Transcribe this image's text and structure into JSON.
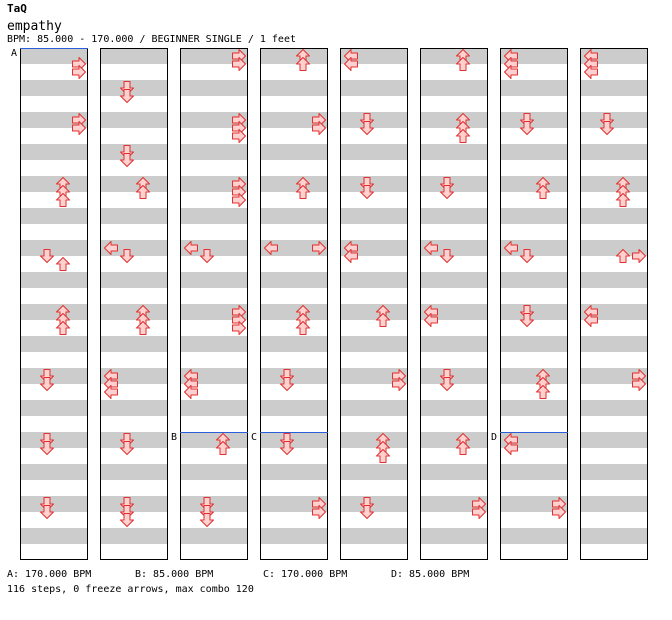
{
  "header": {
    "artist": "TaQ",
    "title": "empathy",
    "info": "BPM: 85.000 - 170.000 / BEGINNER SINGLE / 1 feet"
  },
  "colors": {
    "background": "#ffffff",
    "stripe": "#cccccc",
    "border": "#000000",
    "bpm_line": "#2b5fd9",
    "arrow_fill": "#ffd0d0",
    "arrow_stroke": "#e03030"
  },
  "chart": {
    "columns": 8,
    "measures_per_column": 8,
    "lanes": [
      "left",
      "down",
      "up",
      "right"
    ],
    "markers": [
      {
        "label": "A",
        "col": 0,
        "measure": 0
      },
      {
        "label": "B",
        "col": 2,
        "measure": 6
      },
      {
        "label": "C",
        "col": 3,
        "measure": 6
      },
      {
        "label": "D",
        "col": 6,
        "measure": 6
      }
    ],
    "notes": [
      [
        [
          [
            3,
            1
          ],
          [
            3,
            2
          ]
        ],
        [
          [
            1,
            4
          ],
          [
            1,
            5
          ]
        ],
        [
          [
            3,
            0
          ],
          [
            3,
            1
          ]
        ],
        [
          [
            2,
            0
          ],
          [
            2,
            1
          ]
        ],
        [
          [
            0,
            0
          ],
          [
            0,
            1
          ]
        ],
        [
          [
            2,
            0
          ],
          [
            2,
            1
          ]
        ],
        [
          [
            0,
            0
          ],
          [
            0,
            1
          ],
          [
            0,
            2
          ]
        ],
        [
          [
            0,
            0
          ],
          [
            0,
            1
          ],
          [
            0,
            2
          ]
        ]
      ],
      [
        [
          [
            3,
            0
          ],
          [
            3,
            1
          ]
        ],
        [
          [
            1,
            4
          ],
          [
            1,
            5
          ]
        ],
        [
          [
            3,
            0
          ],
          [
            3,
            1
          ],
          [
            3,
            2
          ]
        ],
        [
          [
            3,
            0
          ],
          [
            3,
            1
          ]
        ],
        [
          [
            1,
            0
          ],
          [
            1,
            1
          ]
        ],
        [
          [
            2,
            0
          ],
          [
            2,
            1
          ],
          [
            2,
            2
          ]
        ],
        [
          [
            1,
            0
          ],
          [
            1,
            1
          ]
        ],
        [
          [
            1,
            0
          ],
          [
            1,
            1
          ]
        ]
      ],
      [
        [
          [
            2,
            0
          ],
          [
            2,
            1
          ],
          [
            2,
            2
          ]
        ],
        [
          [
            2,
            0
          ],
          [
            2,
            1
          ]
        ],
        [
          [
            3,
            0
          ],
          [
            3,
            1
          ],
          [
            3,
            2
          ]
        ],
        [
          [
            2,
            0
          ],
          [
            2,
            1
          ]
        ],
        [
          [
            1,
            0
          ],
          [
            1,
            1
          ]
        ],
        [
          [
            1,
            0
          ],
          [
            1,
            1
          ]
        ],
        [
          [
            2,
            0
          ],
          [
            2,
            1
          ]
        ],
        [
          [
            2,
            0
          ],
          [
            2,
            1
          ],
          [
            2,
            2
          ]
        ]
      ],
      [
        [
          [
            1,
            1
          ],
          [
            2,
            2
          ]
        ],
        [
          [
            0,
            0
          ],
          [
            1,
            1
          ]
        ],
        [
          [
            0,
            0
          ],
          [
            1,
            1
          ]
        ],
        [
          [
            0,
            0
          ],
          [
            3,
            0
          ]
        ],
        [
          [
            0,
            0
          ],
          [
            0,
            1
          ]
        ],
        [
          [
            0,
            0
          ],
          [
            1,
            1
          ]
        ],
        [
          [
            0,
            0
          ],
          [
            1,
            1
          ]
        ],
        [
          [
            2,
            1
          ],
          [
            3,
            1
          ]
        ]
      ],
      [
        [
          [
            2,
            0
          ],
          [
            2,
            1
          ],
          [
            2,
            2
          ]
        ],
        [
          [
            2,
            0
          ],
          [
            2,
            1
          ],
          [
            2,
            2
          ]
        ],
        [
          [
            3,
            0
          ],
          [
            3,
            1
          ],
          [
            3,
            2
          ]
        ],
        [
          [
            2,
            0
          ],
          [
            2,
            1
          ],
          [
            2,
            2
          ]
        ],
        [
          [
            2,
            0
          ],
          [
            2,
            1
          ]
        ],
        [
          [
            0,
            0
          ],
          [
            0,
            1
          ]
        ],
        [
          [
            1,
            0
          ],
          [
            1,
            1
          ]
        ],
        [
          [
            0,
            0
          ],
          [
            0,
            1
          ]
        ]
      ],
      [
        [
          [
            1,
            0
          ],
          [
            1,
            1
          ]
        ],
        [
          [
            0,
            0
          ],
          [
            0,
            1
          ],
          [
            0,
            2
          ]
        ],
        [
          [
            0,
            0
          ],
          [
            0,
            1
          ],
          [
            0,
            2
          ]
        ],
        [
          [
            1,
            0
          ],
          [
            1,
            1
          ]
        ],
        [
          [
            3,
            0
          ],
          [
            3,
            1
          ]
        ],
        [
          [
            1,
            0
          ],
          [
            1,
            1
          ]
        ],
        [
          [
            2,
            0
          ],
          [
            2,
            1
          ],
          [
            2,
            2
          ]
        ],
        [
          [
            3,
            0
          ],
          [
            3,
            1
          ]
        ]
      ],
      [
        [
          [
            1,
            0
          ],
          [
            1,
            1
          ]
        ],
        [
          [
            1,
            0
          ],
          [
            1,
            1
          ]
        ],
        [
          [
            2,
            0
          ],
          [
            2,
            1
          ]
        ],
        [
          [
            1,
            0
          ],
          [
            1,
            1
          ]
        ],
        [
          [
            2,
            0
          ],
          [
            2,
            1
          ],
          [
            2,
            2
          ]
        ],
        [
          [
            2,
            0
          ],
          [
            2,
            1
          ]
        ],
        [
          [
            0,
            0
          ],
          [
            0,
            1
          ]
        ],
        []
      ],
      [
        [
          [
            1,
            0
          ],
          [
            1,
            1
          ]
        ],
        [
          [
            1,
            0
          ],
          [
            1,
            1
          ],
          [
            1,
            2
          ]
        ],
        [
          [
            1,
            0
          ],
          [
            1,
            1
          ],
          [
            1,
            2
          ]
        ],
        [
          [
            3,
            0
          ],
          [
            3,
            1
          ]
        ],
        [
          [
            1,
            0
          ],
          [
            1,
            1
          ]
        ],
        [
          [
            3,
            0
          ],
          [
            3,
            1
          ]
        ],
        [
          [
            3,
            0
          ],
          [
            3,
            1
          ]
        ],
        []
      ]
    ]
  },
  "footer": {
    "bpm_changes": [
      "A: 170.000 BPM",
      "B: 85.000 BPM",
      "C: 170.000 BPM",
      "D: 85.000 BPM"
    ],
    "stats": "116 steps, 0 freeze arrows, max combo 120"
  }
}
